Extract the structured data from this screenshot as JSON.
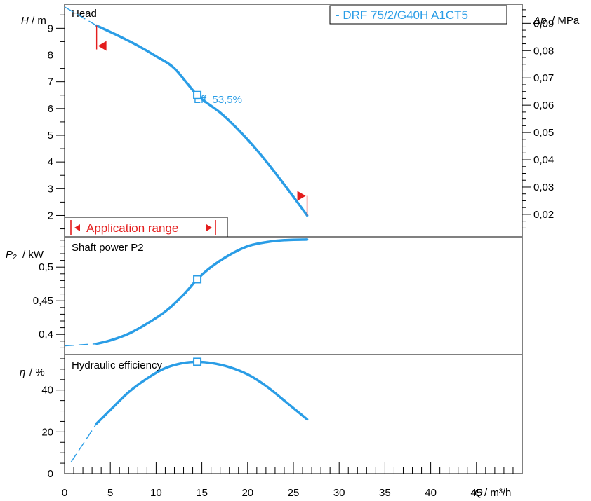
{
  "chart_data": [
    {
      "type": "line",
      "panel_label": "Head",
      "legend": "- DRF 75/2/G40H A1CT5",
      "y_symbol": "H",
      "y_unit": "/ m",
      "y2_symbol": "Δp",
      "y2_unit": "/ MPa",
      "ylim": [
        1.2,
        9.9
      ],
      "y_ticks": [
        "2",
        "3",
        "4",
        "5",
        "6",
        "7",
        "8",
        "9"
      ],
      "y2_ticks": [
        "0,02",
        "0,03",
        "0,04",
        "0,05",
        "0,06",
        "0,07",
        "0,08",
        "0,09"
      ],
      "operating_label": "Eff.  53,5%",
      "operating_point": {
        "x": 14.5,
        "y": 6.5
      },
      "application_range_label": "Application range",
      "application_range": [
        3.5,
        26.5
      ],
      "series": [
        {
          "x": [
            3.5,
            6,
            8,
            10,
            12,
            14.5,
            17,
            19,
            21,
            23,
            25,
            26.5
          ],
          "y": [
            9.1,
            8.7,
            8.35,
            7.95,
            7.5,
            6.5,
            5.85,
            5.2,
            4.45,
            3.6,
            2.7,
            2.0
          ]
        }
      ],
      "extrapolation": {
        "x": [
          0,
          3.5
        ],
        "y": [
          9.8,
          9.1
        ]
      }
    },
    {
      "type": "line",
      "panel_label": "Shaft power P2",
      "y_symbol": "P₂",
      "y_unit": "/ kW",
      "ylim": [
        0.37,
        0.545
      ],
      "y_ticks": [
        "0,4",
        "0,45",
        "0,5"
      ],
      "operating_point": {
        "x": 14.5,
        "y": 0.482
      },
      "series": [
        {
          "x": [
            3.5,
            5,
            7,
            9,
            11,
            13,
            14.5,
            16,
            18,
            20,
            22,
            24,
            26.5
          ],
          "y": [
            0.386,
            0.391,
            0.401,
            0.416,
            0.434,
            0.459,
            0.482,
            0.5,
            0.518,
            0.531,
            0.537,
            0.54,
            0.541
          ]
        }
      ],
      "extrapolation": {
        "x": [
          0,
          3.5
        ],
        "y": [
          0.383,
          0.386
        ]
      }
    },
    {
      "type": "line",
      "panel_label": "Hydraulic efficiency",
      "y_symbol": "η",
      "y_unit": "/ %",
      "ylim": [
        0,
        57
      ],
      "y_ticks": [
        "0",
        "20",
        "40"
      ],
      "operating_point": {
        "x": 14.5,
        "y": 53.5
      },
      "series": [
        {
          "x": [
            3.5,
            5,
            7,
            9,
            11,
            13,
            14.5,
            16,
            18,
            20,
            22,
            24,
            26.5
          ],
          "y": [
            24,
            30.5,
            39,
            45.5,
            50.5,
            53,
            53.5,
            53,
            51,
            47.5,
            42,
            35,
            26
          ]
        }
      ],
      "extrapolation": {
        "x": [
          0.7,
          3.5
        ],
        "y": [
          5.5,
          24
        ]
      }
    }
  ],
  "x_axis": {
    "symbol": "Q",
    "unit": "/ m³/h",
    "xlim": [
      0,
      50
    ],
    "ticks": [
      "0",
      "5",
      "10",
      "15",
      "20",
      "25",
      "30",
      "35",
      "40",
      "45"
    ]
  },
  "colors": {
    "curve": "#2a9de6",
    "range": "#e41d1d",
    "axis": "#000000"
  }
}
